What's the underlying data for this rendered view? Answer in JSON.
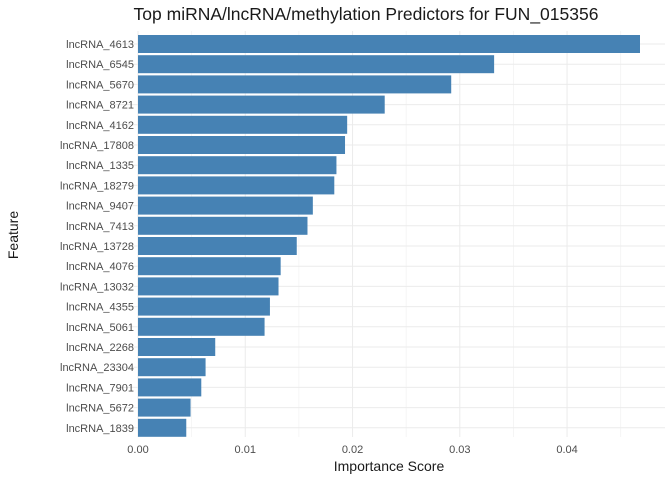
{
  "chart_data": {
    "type": "bar",
    "orientation": "horizontal",
    "title": "Top miRNA/lncRNA/methylation Predictors for FUN_015356",
    "xlabel": "Importance Score",
    "ylabel": "Feature",
    "xlim": [
      0,
      0.0468
    ],
    "xticks": [
      0.0,
      0.01,
      0.02,
      0.03,
      0.04
    ],
    "xtick_labels": [
      "0.00",
      "0.01",
      "0.02",
      "0.03",
      "0.04"
    ],
    "grid": true,
    "legend": "none",
    "bar_color": "#4682B4",
    "categories": [
      "lncRNA_4613",
      "lncRNA_6545",
      "lncRNA_5670",
      "lncRNA_8721",
      "lncRNA_4162",
      "lncRNA_17808",
      "lncRNA_1335",
      "lncRNA_18279",
      "lncRNA_9407",
      "lncRNA_7413",
      "lncRNA_13728",
      "lncRNA_4076",
      "lncRNA_13032",
      "lncRNA_4355",
      "lncRNA_5061",
      "lncRNA_2268",
      "lncRNA_23304",
      "lncRNA_7901",
      "lncRNA_5672",
      "lncRNA_1839"
    ],
    "values": [
      0.0468,
      0.0332,
      0.0292,
      0.023,
      0.0195,
      0.0193,
      0.0185,
      0.0183,
      0.0163,
      0.0158,
      0.0148,
      0.0133,
      0.0131,
      0.0123,
      0.0118,
      0.0072,
      0.0063,
      0.0059,
      0.0049,
      0.0045
    ]
  }
}
